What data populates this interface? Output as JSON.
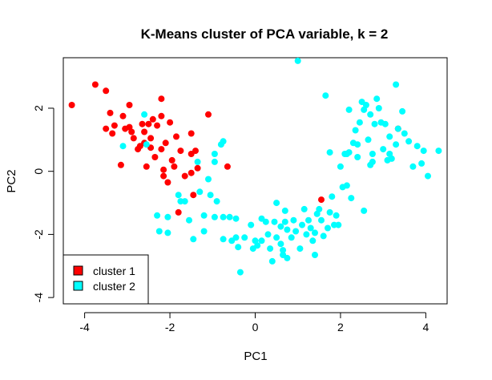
{
  "chart_data": {
    "type": "scatter",
    "title": "K-Means cluster of PCA variable, k = 2",
    "xlabel": "PC1",
    "ylabel": "PC2",
    "xlim": [
      -4.5,
      4.5
    ],
    "ylim": [
      -4.2,
      3.6
    ],
    "xticks": [
      -4,
      -2,
      0,
      2,
      4
    ],
    "yticks": [
      -4,
      -2,
      0,
      2
    ],
    "legend_position": "bottom-left",
    "series": [
      {
        "name": "cluster 1",
        "color": "#ff0000",
        "points": [
          [
            -4.3,
            2.1
          ],
          [
            -3.75,
            2.75
          ],
          [
            -3.5,
            2.55
          ],
          [
            -3.4,
            1.85
          ],
          [
            -3.5,
            1.35
          ],
          [
            -3.35,
            1.2
          ],
          [
            -3.3,
            1.45
          ],
          [
            -3.15,
            0.2
          ],
          [
            -3.1,
            1.75
          ],
          [
            -3.05,
            1.35
          ],
          [
            -2.95,
            1.4
          ],
          [
            -2.95,
            2.1
          ],
          [
            -2.9,
            1.25
          ],
          [
            -2.85,
            1.05
          ],
          [
            -2.75,
            0.7
          ],
          [
            -2.7,
            0.8
          ],
          [
            -2.65,
            1.5
          ],
          [
            -2.6,
            1.25
          ],
          [
            -2.6,
            0.9
          ],
          [
            -2.55,
            0.15
          ],
          [
            -2.5,
            1.5
          ],
          [
            -2.45,
            0.75
          ],
          [
            -2.45,
            1.05
          ],
          [
            -2.4,
            1.65
          ],
          [
            -2.35,
            0.45
          ],
          [
            -2.3,
            1.45
          ],
          [
            -2.2,
            1.75
          ],
          [
            -2.2,
            2.3
          ],
          [
            -2.2,
            0.7
          ],
          [
            -2.15,
            -0.15
          ],
          [
            -2.15,
            0.05
          ],
          [
            -2.1,
            0.9
          ],
          [
            -2.05,
            -0.35
          ],
          [
            -2.0,
            1.55
          ],
          [
            -1.95,
            0.35
          ],
          [
            -1.9,
            0.15
          ],
          [
            -1.85,
            1.1
          ],
          [
            -1.8,
            -1.3
          ],
          [
            -1.75,
            0.65
          ],
          [
            -1.65,
            -0.15
          ],
          [
            -1.5,
            -0.05
          ],
          [
            -1.5,
            1.2
          ],
          [
            -1.5,
            0.55
          ],
          [
            -1.45,
            -0.75
          ],
          [
            -1.4,
            0.65
          ],
          [
            -1.35,
            0.1
          ],
          [
            -1.1,
            1.8
          ],
          [
            -0.65,
            0.15
          ],
          [
            1.55,
            -0.9
          ],
          [
            3.35,
            1.35
          ]
        ]
      },
      {
        "name": "cluster 2",
        "color": "#00ffff",
        "points": [
          [
            -3.1,
            0.8
          ],
          [
            -2.6,
            1.8
          ],
          [
            -2.55,
            0.85
          ],
          [
            -2.3,
            -1.4
          ],
          [
            -2.25,
            -1.9
          ],
          [
            -2.05,
            -1.45
          ],
          [
            -2.05,
            -1.95
          ],
          [
            -1.8,
            -0.75
          ],
          [
            -1.75,
            -0.95
          ],
          [
            -1.65,
            -0.95
          ],
          [
            -1.55,
            -1.55
          ],
          [
            -1.45,
            -2.15
          ],
          [
            -1.35,
            0.3
          ],
          [
            -1.3,
            -0.65
          ],
          [
            -1.2,
            -1.4
          ],
          [
            -1.2,
            -1.9
          ],
          [
            -1.1,
            -0.25
          ],
          [
            -1.05,
            -0.75
          ],
          [
            -0.95,
            0.3
          ],
          [
            -0.95,
            -1.45
          ],
          [
            -0.95,
            0.55
          ],
          [
            -0.9,
            -0.95
          ],
          [
            -0.8,
            0.85
          ],
          [
            -0.75,
            0.95
          ],
          [
            -0.75,
            -1.45
          ],
          [
            -0.75,
            -2.15
          ],
          [
            -0.6,
            -1.45
          ],
          [
            -0.55,
            -2.2
          ],
          [
            -0.45,
            -1.5
          ],
          [
            -0.45,
            -2.1
          ],
          [
            -0.4,
            -2.4
          ],
          [
            -0.35,
            -3.2
          ],
          [
            -0.25,
            -2.1
          ],
          [
            -0.05,
            -2.45
          ],
          [
            -0.1,
            -1.7
          ],
          [
            0.0,
            -2.2
          ],
          [
            0.05,
            -2.35
          ],
          [
            0.15,
            -2.2
          ],
          [
            0.15,
            -1.5
          ],
          [
            0.25,
            -1.6
          ],
          [
            0.3,
            -2.0
          ],
          [
            0.35,
            -2.45
          ],
          [
            0.4,
            -2.85
          ],
          [
            0.45,
            -1.6
          ],
          [
            0.5,
            -1.0
          ],
          [
            0.5,
            -2.1
          ],
          [
            0.6,
            -2.3
          ],
          [
            0.6,
            -1.75
          ],
          [
            0.65,
            -2.65
          ],
          [
            0.65,
            -2.5
          ],
          [
            0.7,
            -1.6
          ],
          [
            0.7,
            -1.25
          ],
          [
            0.75,
            -1.85
          ],
          [
            0.75,
            -2.75
          ],
          [
            0.85,
            -2.1
          ],
          [
            0.9,
            -1.55
          ],
          [
            0.95,
            -1.9
          ],
          [
            1.0,
            3.5
          ],
          [
            1.05,
            -2.45
          ],
          [
            1.1,
            -1.7
          ],
          [
            1.15,
            -1.2
          ],
          [
            1.2,
            -2.0
          ],
          [
            1.25,
            -1.55
          ],
          [
            1.3,
            -1.8
          ],
          [
            1.35,
            -2.2
          ],
          [
            1.4,
            -1.95
          ],
          [
            1.4,
            -2.65
          ],
          [
            1.45,
            -1.35
          ],
          [
            1.5,
            -1.2
          ],
          [
            1.55,
            -1.55
          ],
          [
            1.6,
            -2.05
          ],
          [
            1.65,
            2.4
          ],
          [
            1.7,
            -1.8
          ],
          [
            1.75,
            0.6
          ],
          [
            1.75,
            -1.3
          ],
          [
            1.8,
            -0.8
          ],
          [
            1.85,
            -1.7
          ],
          [
            1.9,
            -1.4
          ],
          [
            1.95,
            -1.7
          ],
          [
            2.0,
            0.15
          ],
          [
            2.05,
            -0.5
          ],
          [
            2.1,
            0.55
          ],
          [
            2.15,
            0.55
          ],
          [
            2.15,
            -0.45
          ],
          [
            2.2,
            1.95
          ],
          [
            2.2,
            0.6
          ],
          [
            2.25,
            -0.85
          ],
          [
            2.3,
            0.9
          ],
          [
            2.35,
            1.3
          ],
          [
            2.4,
            0.45
          ],
          [
            2.4,
            0.85
          ],
          [
            2.45,
            1.55
          ],
          [
            2.5,
            2.2
          ],
          [
            2.55,
            1.95
          ],
          [
            2.55,
            -1.25
          ],
          [
            2.6,
            2.1
          ],
          [
            2.65,
            1.0
          ],
          [
            2.7,
            1.8
          ],
          [
            2.7,
            0.2
          ],
          [
            2.75,
            0.3
          ],
          [
            2.75,
            0.55
          ],
          [
            2.8,
            1.5
          ],
          [
            2.85,
            2.3
          ],
          [
            2.9,
            2.0
          ],
          [
            2.95,
            1.55
          ],
          [
            3.0,
            0.7
          ],
          [
            3.05,
            1.5
          ],
          [
            3.1,
            0.35
          ],
          [
            3.15,
            1.1
          ],
          [
            3.15,
            0.55
          ],
          [
            3.2,
            0.4
          ],
          [
            3.3,
            2.75
          ],
          [
            3.3,
            0.85
          ],
          [
            3.35,
            1.35
          ],
          [
            3.45,
            1.9
          ],
          [
            3.5,
            1.2
          ],
          [
            3.6,
            0.95
          ],
          [
            3.7,
            0.15
          ],
          [
            3.8,
            0.8
          ],
          [
            3.9,
            0.25
          ],
          [
            3.95,
            0.65
          ],
          [
            4.05,
            -0.15
          ],
          [
            4.3,
            0.65
          ]
        ]
      }
    ]
  }
}
